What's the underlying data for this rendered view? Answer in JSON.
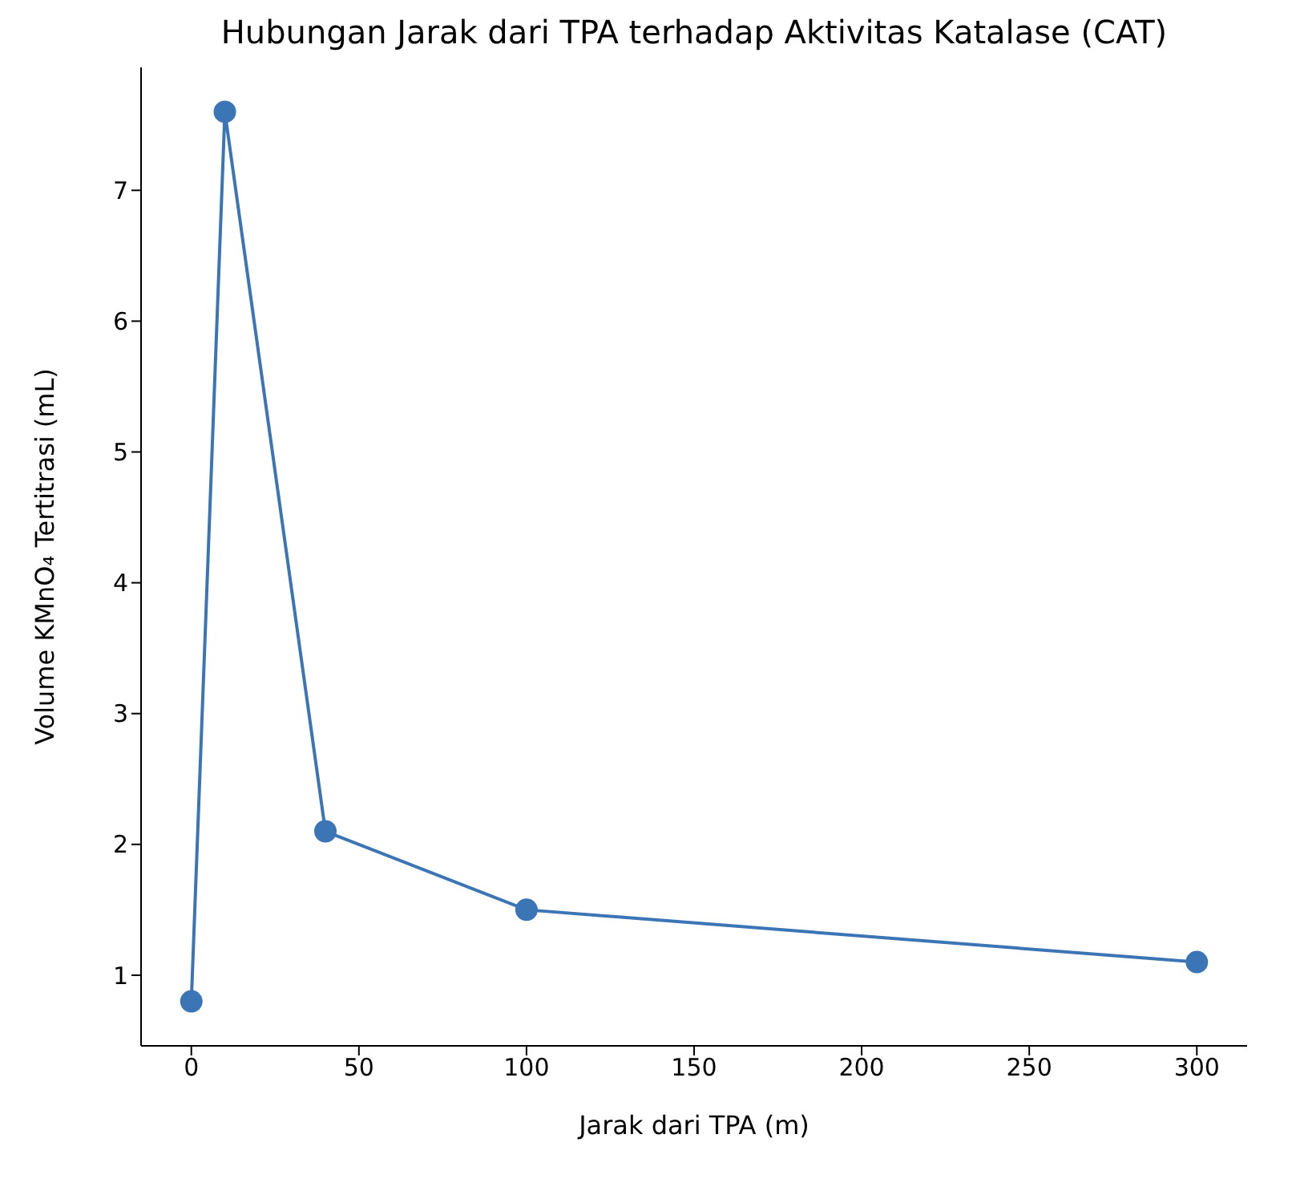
{
  "chart_data": {
    "type": "line",
    "title": "Hubungan Jarak dari TPA terhadap Aktivitas Katalase (CAT)",
    "xlabel": "Jarak dari TPA (m)",
    "ylabel": "Volume KMnO₄ Tertitrasi (mL)",
    "x": [
      0,
      10,
      40,
      100,
      300
    ],
    "series": [
      {
        "color": "#3b75b5",
        "values": [
          0.8,
          7.6,
          2.1,
          1.5,
          1.1
        ]
      }
    ],
    "xlim": [
      -15,
      315
    ],
    "xticks": [
      0,
      50,
      100,
      150,
      200,
      250,
      300
    ],
    "ylim": [
      0.46,
      7.94
    ],
    "yticks": [
      1,
      2,
      3,
      4,
      5,
      6,
      7
    ],
    "grid": false,
    "marker": "circle",
    "line_style": "solid"
  }
}
